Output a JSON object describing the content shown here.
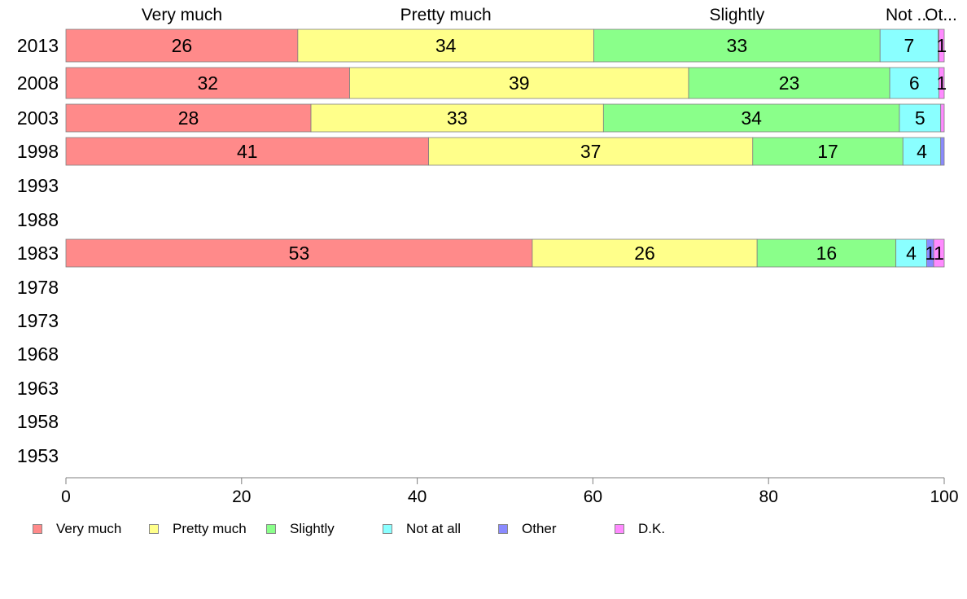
{
  "chart_data": {
    "type": "bar",
    "orientation": "horizontal",
    "stacked": true,
    "title": "",
    "xlabel": "",
    "ylabel": "",
    "xlim": [
      0,
      100
    ],
    "x_ticks": [
      "0",
      "20",
      "40",
      "60",
      "80",
      "100"
    ],
    "grid": false,
    "legend_position": "bottom",
    "categories": [
      "2013",
      "2008",
      "2003",
      "1998",
      "1993",
      "1988",
      "1983",
      "1978",
      "1973",
      "1968",
      "1963",
      "1958",
      "1953"
    ],
    "top_labels": [
      "Very much",
      "Pretty much",
      "Slightly",
      "Not ...",
      "Ot..."
    ],
    "series": [
      {
        "name": "Very much",
        "color": "#FF8A8A",
        "values": [
          26.4,
          32.3,
          27.9,
          41.3,
          null,
          null,
          53.1,
          null,
          null,
          null,
          null,
          null,
          null
        ],
        "labels": [
          "26",
          "32",
          "28",
          "41",
          "",
          "",
          "53",
          "",
          "",
          "",
          "",
          "",
          ""
        ]
      },
      {
        "name": "Pretty much",
        "color": "#FFFF8A",
        "values": [
          33.7,
          38.6,
          33.3,
          36.9,
          null,
          null,
          25.6,
          null,
          null,
          null,
          null,
          null,
          null
        ],
        "labels": [
          "34",
          "39",
          "33",
          "37",
          "",
          "",
          "26",
          "",
          "",
          "",
          "",
          "",
          ""
        ]
      },
      {
        "name": "Slightly",
        "color": "#8AFF8A",
        "values": [
          32.6,
          22.9,
          33.7,
          17.1,
          null,
          null,
          15.8,
          null,
          null,
          null,
          null,
          null,
          null
        ],
        "labels": [
          "33",
          "23",
          "34",
          "17",
          "",
          "",
          "16",
          "",
          "",
          "",
          "",
          "",
          ""
        ]
      },
      {
        "name": "Not at all",
        "color": "#8AFFFF",
        "values": [
          6.6,
          5.6,
          4.7,
          4.3,
          null,
          null,
          3.5,
          null,
          null,
          null,
          null,
          null,
          null
        ],
        "labels": [
          "7",
          "6",
          "5",
          "4",
          "",
          "",
          "4",
          "",
          "",
          "",
          "",
          "",
          ""
        ]
      },
      {
        "name": "Other",
        "color": "#8A8AFF",
        "values": [
          0.1,
          0.0,
          0.0,
          0.4,
          null,
          null,
          0.8,
          null,
          null,
          null,
          null,
          null,
          null
        ],
        "labels": [
          "",
          "",
          "",
          "",
          "",
          "",
          "1",
          "",
          "",
          "",
          "",
          "",
          ""
        ]
      },
      {
        "name": "D.K.",
        "color": "#FF8AFF",
        "values": [
          0.6,
          0.6,
          0.4,
          0.0,
          null,
          null,
          1.2,
          null,
          null,
          null,
          null,
          null,
          null
        ],
        "labels": [
          "1",
          "1",
          "",
          "",
          "",
          "",
          "1",
          "",
          "",
          "",
          "",
          "",
          ""
        ]
      }
    ]
  }
}
